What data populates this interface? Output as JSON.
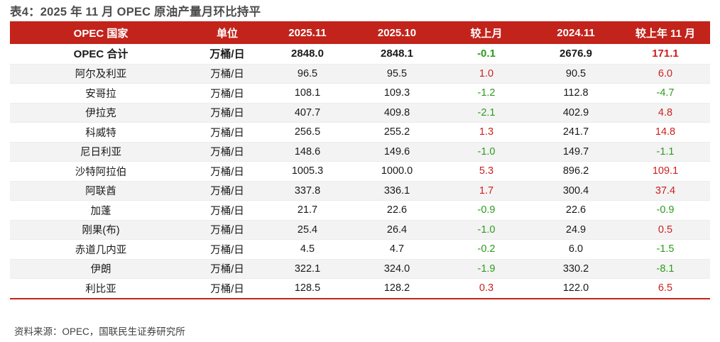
{
  "title": "表4：2025 年 11 月 OPEC 原油产量月环比持平",
  "source": "资料来源：OPEC，国联民生证券研究所",
  "colors": {
    "header_red": "#c2231b",
    "bottom_rule_red": "#c2231b",
    "positive_value_red": "#cc1f1f",
    "negative_value_green": "#2e9b1e",
    "stripe_gray": "#f3f3f3",
    "title_gray": "#4d4d4d"
  },
  "table": {
    "headers": [
      "OPEC 国家",
      "单位",
      "2025.11",
      "2025.10",
      "较上月",
      "2024.11",
      "较上年 11 月"
    ],
    "sign_colored_columns": [
      4,
      6
    ],
    "rows": [
      [
        "OPEC 合计",
        "万桶/日",
        "2848.0",
        "2848.1",
        "-0.1",
        "2676.9",
        "171.1"
      ],
      [
        "阿尔及利亚",
        "万桶/日",
        "96.5",
        "95.5",
        "1.0",
        "90.5",
        "6.0"
      ],
      [
        "安哥拉",
        "万桶/日",
        "108.1",
        "109.3",
        "-1.2",
        "112.8",
        "-4.7"
      ],
      [
        "伊拉克",
        "万桶/日",
        "407.7",
        "409.8",
        "-2.1",
        "402.9",
        "4.8"
      ],
      [
        "科威特",
        "万桶/日",
        "256.5",
        "255.2",
        "1.3",
        "241.7",
        "14.8"
      ],
      [
        "尼日利亚",
        "万桶/日",
        "148.6",
        "149.6",
        "-1.0",
        "149.7",
        "-1.1"
      ],
      [
        "沙特阿拉伯",
        "万桶/日",
        "1005.3",
        "1000.0",
        "5.3",
        "896.2",
        "109.1"
      ],
      [
        "阿联酋",
        "万桶/日",
        "337.8",
        "336.1",
        "1.7",
        "300.4",
        "37.4"
      ],
      [
        "加蓬",
        "万桶/日",
        "21.7",
        "22.6",
        "-0.9",
        "22.6",
        "-0.9"
      ],
      [
        "刚果(布)",
        "万桶/日",
        "25.4",
        "26.4",
        "-1.0",
        "24.9",
        "0.5"
      ],
      [
        "赤道几内亚",
        "万桶/日",
        "4.5",
        "4.7",
        "-0.2",
        "6.0",
        "-1.5"
      ],
      [
        "伊朗",
        "万桶/日",
        "322.1",
        "324.0",
        "-1.9",
        "330.2",
        "-8.1"
      ],
      [
        "利比亚",
        "万桶/日",
        "128.5",
        "128.2",
        "0.3",
        "122.0",
        "6.5"
      ]
    ]
  }
}
